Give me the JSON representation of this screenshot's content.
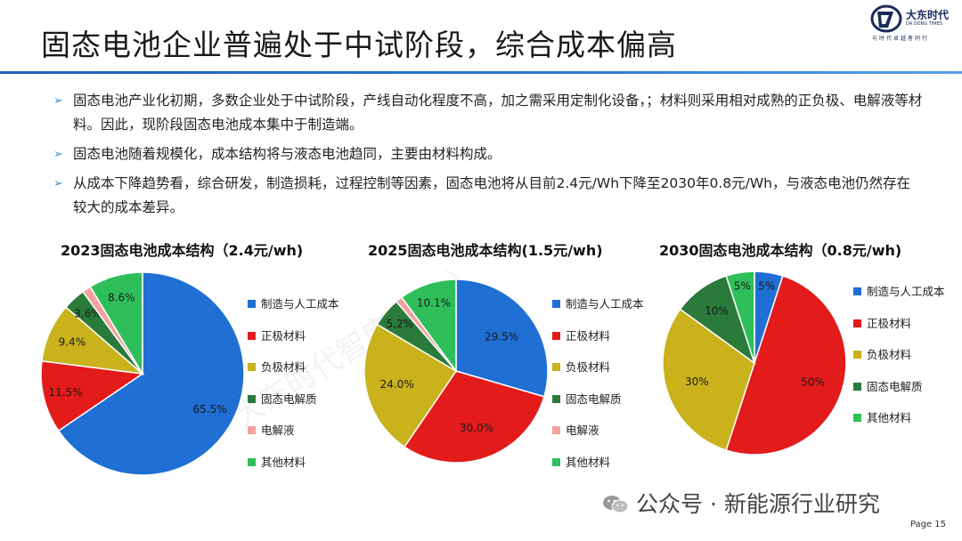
{
  "title": "固态电池企业普遍处于中试阶段，综合成本偏高",
  "logo": {
    "name": "大东时代",
    "en": "DA DONG TIMES",
    "slogan": "与时代卓越者同行"
  },
  "bullets": [
    "固态电池产业化初期，多数企业处于中试阶段，产线自动化程度不高，加之需采用定制化设备，；材料则采用相对成熟的正负极、电解液等材料。因此，现阶段固态电池成本集中于制造端。",
    "固态电池随着规模化，成本结构将与液态电池趋同，主要由材料构成。",
    "从成本下降趋势看，综合研发，制造损耗，过程控制等因素，固态电池将从目前2.4元/Wh下降至2030年0.8元/Wh，与液态电池仍然存在较大的成本差异。"
  ],
  "colors": {
    "制造与人工成本": "#1f6fd4",
    "正极材料": "#e31b1b",
    "负极材料": "#c9b21c",
    "固态电解质": "#2a7a3a",
    "电解液": "#f2a3a0",
    "其他材料": "#2fbf5a"
  },
  "chart_data": [
    {
      "type": "pie",
      "title": "2023固态电池成本结构（2.4元/wh)",
      "categories": [
        "制造与人工成本",
        "正极材料",
        "负极材料",
        "固态电解质",
        "电解液",
        "其他材料"
      ],
      "values": [
        65.5,
        11.5,
        9.4,
        3.6,
        1.4,
        8.6
      ],
      "labels": [
        "65.5%",
        "11.5%",
        "9.4%",
        "3.6%",
        "",
        "8.6%"
      ],
      "legend": [
        "制造与人工成本",
        "正极材料",
        "负极材料",
        "固态电解质",
        "电解液",
        "其他材料"
      ]
    },
    {
      "type": "pie",
      "title": "2025固态电池成本结构(1.5元/wh)",
      "categories": [
        "制造与人工成本",
        "正极材料",
        "负极材料",
        "固态电解质",
        "电解液",
        "其他材料"
      ],
      "values": [
        29.5,
        30.0,
        24.0,
        5.2,
        1.2,
        10.1
      ],
      "labels": [
        "29.5%",
        "30.0%",
        "24.0%",
        "5.2%",
        "",
        "10.1%"
      ],
      "legend": [
        "制造与人工成本",
        "正极材料",
        "负极材料",
        "固态电解质",
        "电解液",
        "其他材料"
      ]
    },
    {
      "type": "pie",
      "title": "2030固态电池成本结构（0.8元/wh)",
      "categories": [
        "制造与人工成本",
        "正极材料",
        "负极材料",
        "固态电解质",
        "其他材料"
      ],
      "values": [
        5,
        50,
        30,
        10,
        5
      ],
      "labels": [
        "5%",
        "50%",
        "30%",
        "10%",
        "5%"
      ],
      "legend": [
        "制造与人工成本",
        "正极材料",
        "负极材料",
        "固态电解质",
        "其他材料"
      ]
    }
  ],
  "watermark": "大东时代智库（TD）",
  "footer": {
    "source": "公众号 · 新能源行业研究",
    "page": "Page 15"
  }
}
